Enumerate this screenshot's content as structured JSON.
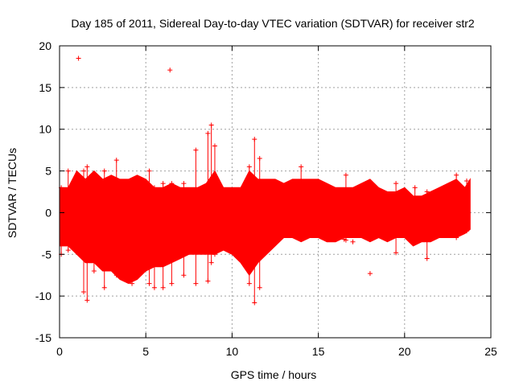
{
  "chart_data": {
    "type": "scatter",
    "title": "Day 185 of 2011, Sidereal Day-to-day VTEC variation (SDTVAR) for receiver str2",
    "xlabel": "GPS time / hours",
    "ylabel": "SDTVAR / TECUs",
    "xlim": [
      0,
      25
    ],
    "ylim": [
      -15,
      20
    ],
    "x_ticks": [
      0,
      5,
      10,
      15,
      20,
      25
    ],
    "y_ticks": [
      -15,
      -10,
      -5,
      0,
      5,
      10,
      15,
      20
    ],
    "x_tick_labels": [
      "0",
      "5",
      "10",
      "15",
      "20",
      "25"
    ],
    "y_tick_labels": [
      "-15",
      "-10",
      "-5",
      "0",
      "5",
      "10",
      "15",
      "20"
    ],
    "grid": true,
    "marker": "+",
    "series_color": "#ff0000",
    "envelope": {
      "x": [
        0,
        0.5,
        1,
        1.5,
        2,
        2.5,
        3,
        3.5,
        4,
        4.5,
        5,
        5.5,
        6,
        6.5,
        7,
        7.5,
        8,
        8.5,
        9,
        9.5,
        10,
        10.5,
        11,
        11.5,
        12,
        12.5,
        13,
        13.5,
        14,
        14.5,
        15,
        15.5,
        16,
        16.5,
        17,
        17.5,
        18,
        18.5,
        19,
        19.5,
        20,
        20.5,
        21,
        21.5,
        22,
        22.5,
        23,
        23.5,
        23.8
      ],
      "upper": [
        3,
        3,
        5,
        4,
        5,
        4,
        4.5,
        4,
        4,
        4.5,
        4,
        3,
        3,
        3.5,
        3,
        3,
        3,
        3.5,
        5,
        3,
        3,
        3,
        5,
        4,
        4,
        4,
        3.5,
        4,
        4,
        4,
        4,
        3.5,
        3,
        3,
        3,
        3.5,
        4,
        3,
        2.5,
        2.5,
        3,
        2,
        2,
        2.5,
        3,
        3.5,
        4,
        3,
        4
      ],
      "lower": [
        -4,
        -4,
        -5,
        -6,
        -6,
        -7,
        -7,
        -8,
        -8.5,
        -8,
        -7,
        -6.5,
        -6.5,
        -6,
        -5.5,
        -5,
        -5,
        -5,
        -5,
        -4.5,
        -5,
        -6,
        -7.5,
        -6,
        -5,
        -4,
        -3,
        -3,
        -3.5,
        -3,
        -3,
        -3.5,
        -3.5,
        -3,
        -3,
        -3,
        -3.5,
        -3,
        -3.5,
        -3,
        -3,
        -4,
        -3.5,
        -3.5,
        -3,
        -3,
        -3,
        -2.5,
        -2
      ]
    },
    "whiskers": [
      {
        "x": 0.1,
        "low": -5,
        "high": 3
      },
      {
        "x": 0.5,
        "low": -4.5,
        "high": 5
      },
      {
        "x": 1.4,
        "low": -9.5,
        "high": 5
      },
      {
        "x": 1.6,
        "low": -10.5,
        "high": 5.5
      },
      {
        "x": 2.0,
        "low": -7,
        "high": 4
      },
      {
        "x": 2.6,
        "low": -9,
        "high": 5
      },
      {
        "x": 3.3,
        "low": -7.5,
        "high": 6.3
      },
      {
        "x": 4.2,
        "low": -8.5,
        "high": 3.5
      },
      {
        "x": 5.2,
        "low": -8.5,
        "high": 5
      },
      {
        "x": 5.5,
        "low": -9,
        "high": 3
      },
      {
        "x": 6.0,
        "low": -9,
        "high": 3.5
      },
      {
        "x": 6.5,
        "low": -8.5,
        "high": 3.5
      },
      {
        "x": 7.2,
        "low": -7.5,
        "high": 3.5
      },
      {
        "x": 7.9,
        "low": -8.5,
        "high": 7.5
      },
      {
        "x": 8.6,
        "low": -8.2,
        "high": 9.5
      },
      {
        "x": 8.8,
        "low": -6,
        "high": 10.5
      },
      {
        "x": 9.0,
        "low": -5,
        "high": 8
      },
      {
        "x": 11.0,
        "low": -8.5,
        "high": 5.5
      },
      {
        "x": 11.3,
        "low": -10.8,
        "high": 8.8
      },
      {
        "x": 11.6,
        "low": -9,
        "high": 6.5
      },
      {
        "x": 14.0,
        "low": -3,
        "high": 5.5
      },
      {
        "x": 16.6,
        "low": -3.3,
        "high": 4.5
      },
      {
        "x": 19.5,
        "low": -4.8,
        "high": 3.5
      },
      {
        "x": 20.6,
        "low": -3.5,
        "high": 3
      },
      {
        "x": 21.3,
        "low": -5.5,
        "high": 2.5
      },
      {
        "x": 23.0,
        "low": -3,
        "high": 4.5
      },
      {
        "x": 23.6,
        "low": -2.2,
        "high": 3.8
      }
    ],
    "outliers": [
      {
        "x": 1.1,
        "y": 18.5
      },
      {
        "x": 6.4,
        "y": 17.1
      },
      {
        "x": 18.0,
        "y": -7.3
      },
      {
        "x": 17.0,
        "y": -3.5
      },
      {
        "x": 16.5,
        "y": -3.2
      }
    ]
  }
}
